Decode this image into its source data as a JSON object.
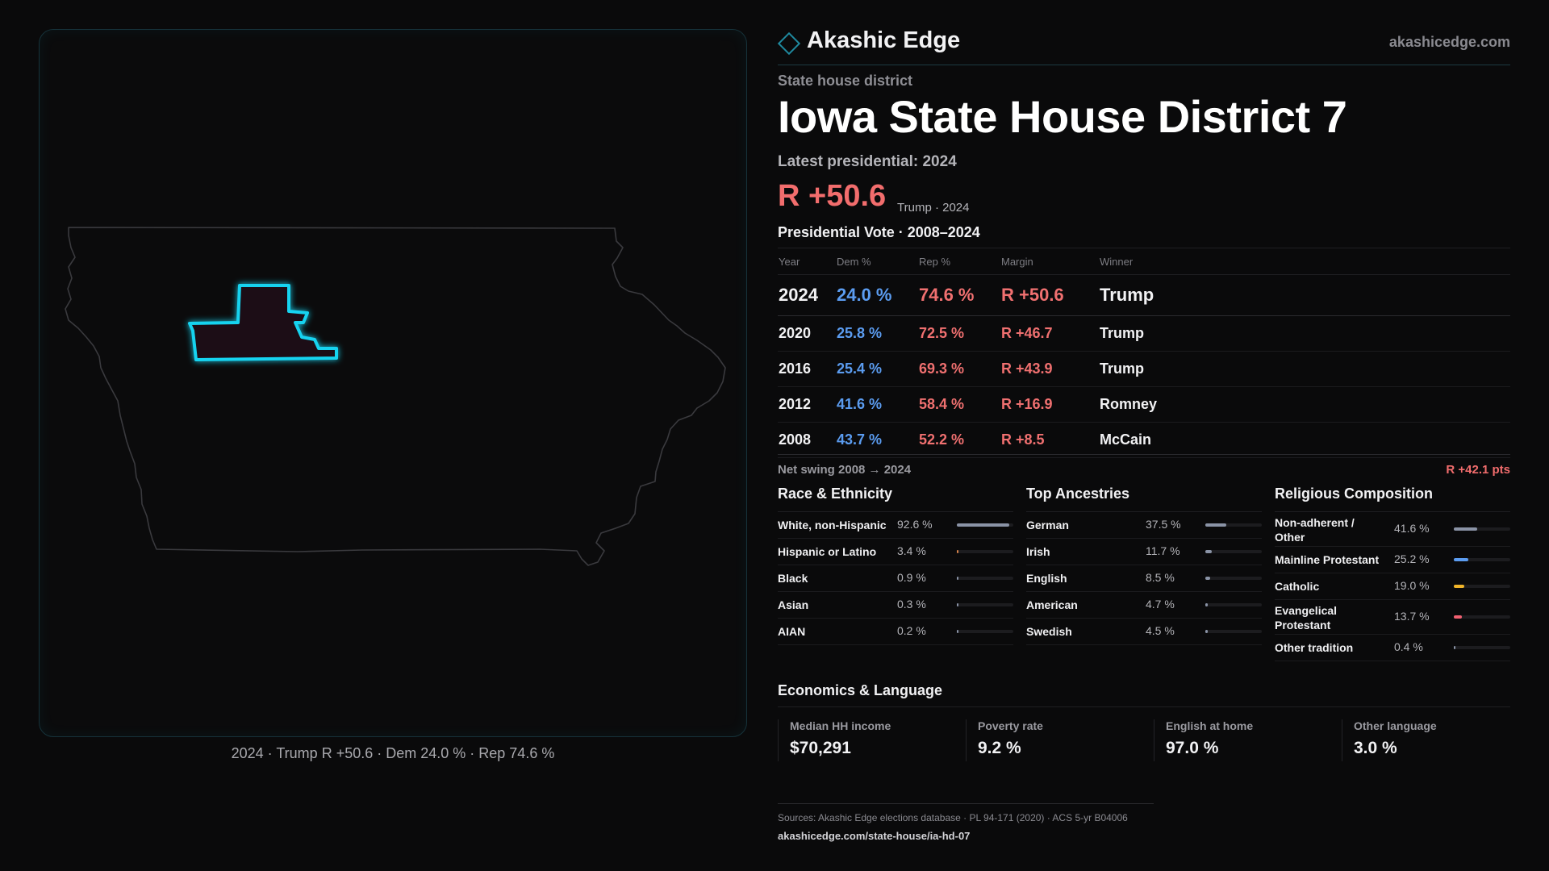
{
  "map": {
    "caption": "2024 · Trump R +50.6 · Dem 24.0 % · Rep 74.6 %",
    "district_outline_color": "#19d3f0",
    "district_fill_color": "#1a0e12",
    "state_outline_color": "#3a3a3e"
  },
  "brand": {
    "name": "Akashic Edge",
    "url": "akashicedge.com",
    "logo_icon": "diamond-outline-icon"
  },
  "header": {
    "eyebrow": "State house district",
    "title": "Iowa State House District 7",
    "latest": "Latest presidential: 2024",
    "margin": "R +50.6",
    "margin_sub": "Trump · 2024"
  },
  "presidential": {
    "title": "Presidential Vote · 2008–2024",
    "columns": [
      "Year",
      "Dem %",
      "Rep %",
      "Margin",
      "Winner"
    ],
    "rows": [
      {
        "year": "2024",
        "dem": "24.0 %",
        "rep": "74.6 %",
        "margin": "R +50.6",
        "winner": "Trump"
      },
      {
        "year": "2020",
        "dem": "25.8 %",
        "rep": "72.5 %",
        "margin": "R +46.7",
        "winner": "Trump"
      },
      {
        "year": "2016",
        "dem": "25.4 %",
        "rep": "69.3 %",
        "margin": "R +43.9",
        "winner": "Trump"
      },
      {
        "year": "2012",
        "dem": "41.6 %",
        "rep": "58.4 %",
        "margin": "R +16.9",
        "winner": "Romney"
      },
      {
        "year": "2008",
        "dem": "43.7 %",
        "rep": "52.2 %",
        "margin": "R +8.5",
        "winner": "McCain"
      }
    ],
    "swing_label": "Net swing 2008 → 2024",
    "swing_value": "R +42.1 pts"
  },
  "race": {
    "title": "Race & Ethnicity",
    "items": [
      {
        "label": "White, non-Hispanic",
        "pct": "92.6 %",
        "value": 92.6,
        "color": "#8a93a6"
      },
      {
        "label": "Hispanic or Latino",
        "pct": "3.4 %",
        "value": 3.4,
        "color": "#d7824a"
      },
      {
        "label": "Black",
        "pct": "0.9 %",
        "value": 0.9,
        "color": "#8a93a6"
      },
      {
        "label": "Asian",
        "pct": "0.3 %",
        "value": 0.3,
        "color": "#8a93a6"
      },
      {
        "label": "AIAN",
        "pct": "0.2 %",
        "value": 0.2,
        "color": "#8a93a6"
      }
    ]
  },
  "ancestry": {
    "title": "Top Ancestries",
    "items": [
      {
        "label": "German",
        "pct": "37.5 %",
        "value": 37.5,
        "color": "#8a93a6"
      },
      {
        "label": "Irish",
        "pct": "11.7 %",
        "value": 11.7,
        "color": "#8a93a6"
      },
      {
        "label": "English",
        "pct": "8.5 %",
        "value": 8.5,
        "color": "#8a93a6"
      },
      {
        "label": "American",
        "pct": "4.7 %",
        "value": 4.7,
        "color": "#8a93a6"
      },
      {
        "label": "Swedish",
        "pct": "4.5 %",
        "value": 4.5,
        "color": "#8a93a6"
      }
    ]
  },
  "religion": {
    "title": "Religious Composition",
    "items": [
      {
        "label": "Non-adherent / Other",
        "pct": "41.6 %",
        "value": 41.6,
        "color": "#8a93a6"
      },
      {
        "label": "Mainline Protestant",
        "pct": "25.2 %",
        "value": 25.2,
        "color": "#5b9cf0"
      },
      {
        "label": "Catholic",
        "pct": "19.0 %",
        "value": 19.0,
        "color": "#f0b429"
      },
      {
        "label": "Evangelical Protestant",
        "pct": "13.7 %",
        "value": 13.7,
        "color": "#f06070"
      },
      {
        "label": "Other tradition",
        "pct": "0.4 %",
        "value": 0.4,
        "color": "#8a93a6"
      }
    ]
  },
  "economics": {
    "title": "Economics & Language",
    "stats": [
      {
        "label": "Median HH income",
        "value": "$70,291"
      },
      {
        "label": "Poverty rate",
        "value": "9.2 %"
      },
      {
        "label": "English at home",
        "value": "97.0 %"
      },
      {
        "label": "Other language",
        "value": "3.0 %"
      }
    ]
  },
  "sources": {
    "line": "Sources: Akashic Edge elections database · PL 94-171 (2020) · ACS 5-yr B04006",
    "url": "akashicedge.com/state-house/ia-hd-07"
  }
}
